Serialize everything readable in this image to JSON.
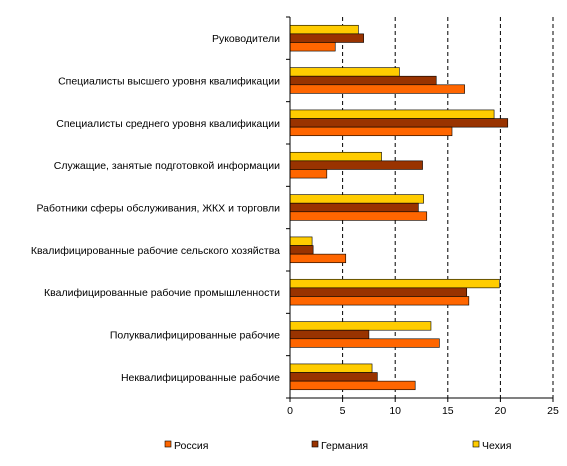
{
  "chart_data": {
    "type": "bar",
    "orientation": "horizontal",
    "categories": [
      "Руководители",
      "Специалисты высшего уровня квалификации",
      "Специалисты среднего уровня квалификации",
      "Служащие, занятые подготовкой информации",
      "Работники сферы обслуживания, ЖКХ и торговли",
      "Квалифицированные рабочие сельского хозяйства",
      "Квалифицированные рабочие промышленности",
      "Полуквалифицированные рабочие",
      "Неквалифицированные рабочие"
    ],
    "series": [
      {
        "name": "Чехия",
        "color": "#FFCC00",
        "values": [
          6.5,
          10.4,
          19.4,
          8.7,
          12.7,
          2.1,
          19.9,
          13.4,
          7.8
        ]
      },
      {
        "name": "Германия",
        "color": "#993300",
        "values": [
          7.0,
          13.9,
          20.7,
          12.6,
          12.2,
          2.2,
          16.8,
          7.5,
          8.3
        ]
      },
      {
        "name": "Россия",
        "color": "#FF6600",
        "values": [
          4.3,
          16.6,
          15.4,
          3.5,
          13.0,
          5.3,
          17.0,
          14.2,
          11.9
        ]
      }
    ],
    "xlim": [
      0,
      25
    ],
    "xticks": [
      0,
      5,
      10,
      15,
      20,
      25
    ],
    "gridlines": "vertical dashed",
    "legend_position": "bottom",
    "legend_order": [
      "Россия",
      "Германия",
      "Чехия"
    ]
  }
}
